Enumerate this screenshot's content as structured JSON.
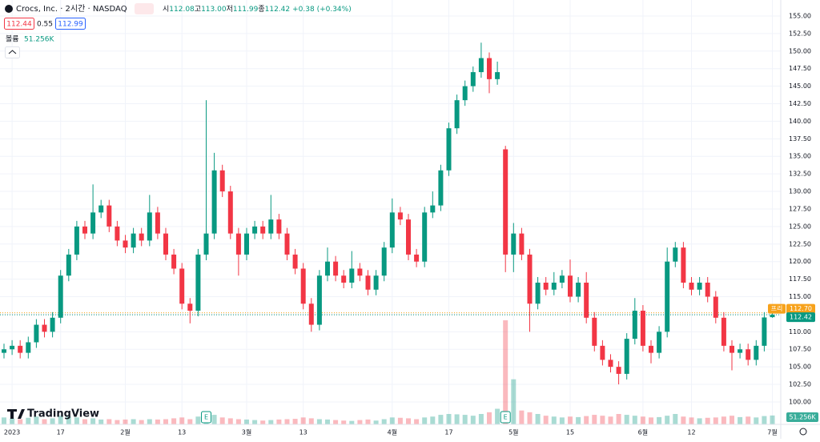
{
  "header": {
    "symbol": "Crocs, Inc. · 2시간 · NASDAQ",
    "open_label": "시",
    "open": "112.08",
    "high_label": "고",
    "high": "113.00",
    "low_label": "저",
    "low": "111.99",
    "close_label": "종",
    "close": "112.42",
    "change": "+0.38 (+0.34%)",
    "bid": "112.44",
    "spread": "0.55",
    "ask": "112.99",
    "volume_label": "볼륨",
    "volume": "51.256K"
  },
  "logo": "TradingView",
  "chart_data": {
    "type": "candlestick",
    "categories": [
      null,
      "2023",
      null,
      null,
      null,
      null,
      null,
      "17",
      null,
      null,
      null,
      null,
      null,
      null,
      null,
      "2월",
      null,
      null,
      null,
      null,
      null,
      null,
      "13",
      null,
      null,
      null,
      null,
      null,
      null,
      null,
      "3월",
      null,
      null,
      null,
      null,
      null,
      null,
      "13",
      null,
      null,
      null,
      null,
      null,
      null,
      null,
      null,
      null,
      null,
      "4월",
      null,
      null,
      null,
      null,
      null,
      null,
      "17",
      null,
      null,
      null,
      null,
      null,
      null,
      null,
      "5월",
      null,
      null,
      null,
      null,
      null,
      null,
      "15",
      null,
      null,
      null,
      null,
      null,
      null,
      null,
      null,
      "6월",
      null,
      null,
      null,
      null,
      null,
      "12",
      null,
      null,
      null,
      null,
      null,
      null,
      null,
      null,
      null,
      "7월"
    ],
    "open": [
      107,
      107.5,
      108,
      107,
      108.5,
      111,
      110,
      112,
      118,
      121,
      125,
      124,
      127,
      128,
      125,
      123,
      122,
      124,
      123,
      127,
      124,
      121,
      119,
      114,
      113,
      121,
      124,
      133,
      130,
      124,
      121,
      124,
      125,
      124,
      126,
      124,
      121,
      119,
      114,
      111,
      118,
      120,
      118,
      117,
      119,
      118,
      116,
      118,
      122,
      127,
      126,
      121,
      120,
      127,
      128,
      133,
      139,
      143,
      145,
      147,
      149,
      146,
      136,
      121,
      124,
      121,
      114,
      117,
      116,
      117,
      118,
      115,
      117,
      112,
      108,
      106,
      105,
      104,
      109,
      113,
      108,
      107,
      110,
      120,
      122,
      117,
      116,
      117,
      115,
      112,
      108,
      107,
      107.5,
      106,
      108,
      112.08
    ],
    "high": [
      108.3,
      108.8,
      108.8,
      109.3,
      111.8,
      111.8,
      112.8,
      118.8,
      121.8,
      125.8,
      125.8,
      131,
      128.8,
      128.8,
      125.8,
      123.8,
      124.8,
      124.8,
      129.5,
      127.8,
      124.8,
      121.8,
      119.8,
      114.8,
      121.8,
      143,
      135.5,
      133.8,
      130.8,
      124.8,
      124.8,
      125.8,
      125.8,
      129.5,
      126.8,
      124.8,
      121.8,
      119.8,
      114.8,
      118.8,
      122,
      120.8,
      118.8,
      121.5,
      119.8,
      118.8,
      118.8,
      122.8,
      129,
      127.8,
      126.8,
      121.8,
      127.8,
      130,
      133.8,
      139.8,
      143.8,
      145.8,
      147.8,
      151.2,
      149.8,
      148.5,
      136.5,
      125.5,
      124.8,
      121.8,
      117.8,
      117.8,
      118.5,
      118.8,
      120.3,
      117.8,
      118.5,
      112.8,
      108.8,
      106.8,
      105.8,
      109.8,
      114.8,
      113.8,
      108.8,
      110.8,
      122,
      122.8,
      122.8,
      117.8,
      117.8,
      117.8,
      115.8,
      112.8,
      108.8,
      108.3,
      108.3,
      108.8,
      112.8,
      113
    ],
    "low": [
      106.2,
      106.7,
      106.2,
      106.2,
      107.7,
      109.2,
      109.2,
      111.2,
      117.2,
      120.2,
      123.2,
      123.2,
      126.2,
      124.2,
      122.2,
      121.2,
      121.2,
      122.2,
      122.2,
      123.2,
      120.2,
      118.2,
      113.2,
      111.2,
      112.2,
      120.2,
      123.2,
      129.2,
      123.2,
      118,
      120.2,
      123.2,
      123.2,
      123.2,
      123.2,
      120.2,
      118.2,
      113.2,
      110,
      110.2,
      117.2,
      117.2,
      116.2,
      116.2,
      117.2,
      115.2,
      115.2,
      117.2,
      121.2,
      125.2,
      120.2,
      119.2,
      119.2,
      126.2,
      127.2,
      132.2,
      138.2,
      142.2,
      144.2,
      146.2,
      144,
      145.2,
      118.5,
      118.5,
      120.2,
      110,
      113.2,
      115.2,
      115.2,
      116.2,
      114.2,
      114.2,
      111.2,
      107.2,
      105.2,
      104.2,
      102.5,
      103.2,
      108.2,
      107.2,
      105.5,
      106.2,
      109.2,
      119.2,
      116.2,
      115.2,
      115.2,
      114.2,
      111.2,
      107.2,
      104.5,
      106.2,
      105.2,
      105.2,
      107.2,
      111.99
    ],
    "close": [
      107.5,
      108,
      107,
      108.5,
      111,
      110,
      112,
      118,
      121,
      125,
      124,
      127,
      128,
      125,
      123,
      122,
      124,
      123,
      127,
      124,
      121,
      119,
      114,
      113,
      121,
      124,
      133,
      130,
      124,
      121,
      124,
      125,
      124,
      126,
      124,
      121,
      119,
      114,
      111,
      118,
      120,
      118,
      117,
      119,
      118,
      116,
      118,
      122,
      127,
      126,
      121,
      120,
      127,
      128,
      133,
      139,
      143,
      145,
      147,
      149,
      146,
      147,
      121,
      124,
      121,
      114,
      117,
      116,
      117,
      118,
      115,
      117,
      112,
      108,
      106,
      105,
      104,
      109,
      113,
      108,
      107,
      110,
      120,
      122,
      117,
      116,
      117,
      115,
      112,
      108,
      107,
      107.5,
      106,
      108,
      112.04,
      112.42
    ],
    "volume": [
      40,
      35,
      30,
      38,
      45,
      30,
      35,
      50,
      45,
      40,
      30,
      35,
      28,
      30,
      25,
      28,
      30,
      25,
      30,
      28,
      30,
      35,
      40,
      30,
      45,
      60,
      55,
      40,
      35,
      30,
      28,
      25,
      22,
      25,
      28,
      30,
      32,
      40,
      35,
      30,
      28,
      25,
      22,
      20,
      25,
      28,
      22,
      30,
      40,
      38,
      35,
      30,
      40,
      45,
      55,
      60,
      58,
      55,
      50,
      60,
      70,
      90,
      600,
      260,
      80,
      70,
      60,
      50,
      45,
      40,
      45,
      42,
      48,
      55,
      50,
      45,
      60,
      55,
      50,
      45,
      40,
      42,
      50,
      60,
      45,
      40,
      35,
      38,
      40,
      45,
      50,
      42,
      45,
      40,
      48,
      51.256
    ],
    "up_color": "#089981",
    "down_color": "#f23645",
    "ylim": [
      96.8,
      157.28
    ],
    "yticks": [
      {
        "value": 100,
        "label": "100.00"
      },
      {
        "value": 102.5,
        "label": "102.50"
      },
      {
        "value": 105,
        "label": "105.00"
      },
      {
        "value": 107.5,
        "label": "107.50"
      },
      {
        "value": 110,
        "label": "110.00"
      },
      {
        "value": 112.5,
        "label": "112.50"
      },
      {
        "value": 115,
        "label": "115.00"
      },
      {
        "value": 117.5,
        "label": "117.50"
      },
      {
        "value": 120,
        "label": "120.00"
      },
      {
        "value": 122.5,
        "label": "122.50"
      },
      {
        "value": 125,
        "label": "125.00"
      },
      {
        "value": 127.5,
        "label": "127.50"
      },
      {
        "value": 130,
        "label": "130.00"
      },
      {
        "value": 132.5,
        "label": "132.50"
      },
      {
        "value": 135,
        "label": "135.00"
      },
      {
        "value": 137.5,
        "label": "137.50"
      },
      {
        "value": 140,
        "label": "140.00"
      },
      {
        "value": 142.5,
        "label": "142.50"
      },
      {
        "value": 145,
        "label": "145.00"
      },
      {
        "value": 147.5,
        "label": "147.50"
      },
      {
        "value": 150,
        "label": "150.00"
      },
      {
        "value": 152.5,
        "label": "152.50"
      },
      {
        "value": 155,
        "label": "155.00"
      }
    ],
    "premarket": {
      "name": "프리",
      "price": {
        "value": 112.7,
        "label": "112.70"
      },
      "color": "#f7a21b"
    },
    "earnings": {
      "label": "E",
      "indices": [
        25,
        62
      ]
    },
    "grid": true
  }
}
